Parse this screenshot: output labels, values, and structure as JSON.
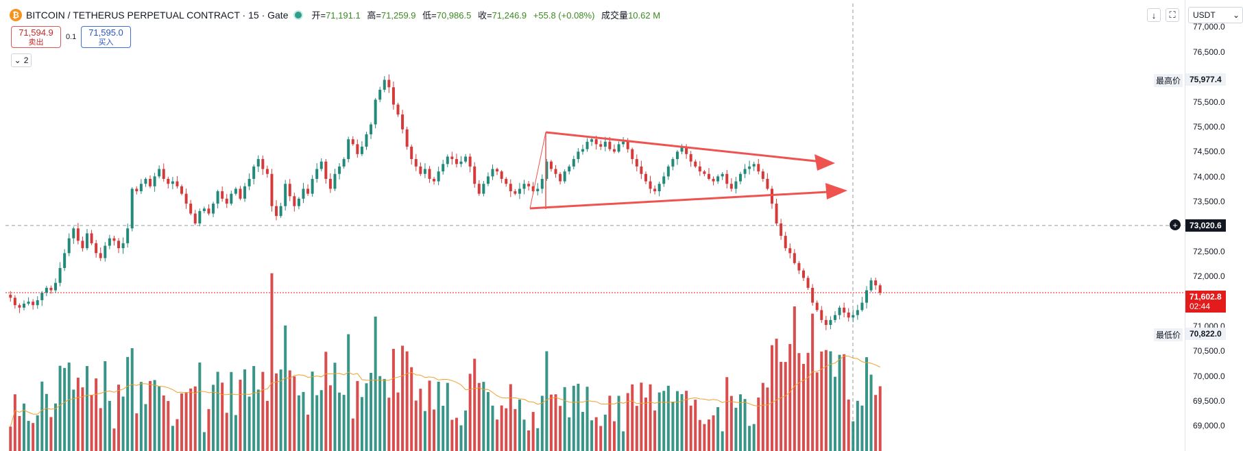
{
  "legend": {
    "coin_glyph": "₿",
    "symbol": "BITCOIN / TETHERUS PERPETUAL CONTRACT · 15 · Gate",
    "open_label": "开=",
    "open": "71,191.1",
    "high_label": "高=",
    "high": "71,259.9",
    "low_label": "低=",
    "low": "70,986.5",
    "close_label": "收=",
    "close": "71,246.9",
    "change": "+55.8 (+0.08%)",
    "volume_label": "成交量",
    "volume": "10.62 M"
  },
  "trade": {
    "sell_price": "71,594.9",
    "sell_label": "卖出",
    "spread": "0.1",
    "buy_price": "71,595.0",
    "buy_label": "买入"
  },
  "indicator_count": "2",
  "toolbar": {
    "download_icon": "↓",
    "fullscreen_icon": "⛶"
  },
  "currency_select": "USDT",
  "price_axis": {
    "ticks": [
      "77,000.0",
      "76,500.0",
      "75,500.0",
      "75,000.0",
      "74,500.0",
      "74,000.0",
      "73,500.0",
      "72,500.0",
      "72,000.0",
      "71,000.0",
      "70,500.0",
      "70,000.0",
      "69,500.0",
      "69,000.0"
    ],
    "high_label": "最高价",
    "high_value": "75,977.4",
    "low_label": "最低价",
    "low_value": "70,822.0",
    "crosshair_value": "73,020.6",
    "last_price": "71,602.8",
    "countdown": "02:44"
  },
  "colors": {
    "up": "#22897b",
    "down": "#d43a3a",
    "arrow": "#ef5350",
    "ma": "#f0a02a",
    "last_price_bg": "#e31b1b"
  },
  "chart_data": {
    "type": "candlestick",
    "interval": "15",
    "y_range": [
      68800,
      77100
    ],
    "candles": [
      71500,
      71350,
      71300,
      71380,
      71420,
      71350,
      71450,
      71600,
      71700,
      71650,
      71800,
      72100,
      72400,
      72700,
      72900,
      72650,
      72500,
      72800,
      72600,
      72400,
      72300,
      72550,
      72700,
      72650,
      72500,
      72600,
      72900,
      73700,
      73650,
      73800,
      73900,
      73750,
      73950,
      74100,
      73900,
      73800,
      73850,
      73750,
      73600,
      73400,
      73200,
      73000,
      73250,
      73300,
      73200,
      73400,
      73650,
      73500,
      73400,
      73600,
      73700,
      73500,
      73750,
      73900,
      74150,
      74300,
      74100,
      74000,
      73350,
      73150,
      73350,
      73800,
      73550,
      73350,
      73500,
      73700,
      73600,
      73900,
      74100,
      74250,
      73900,
      73700,
      74000,
      74150,
      74300,
      74700,
      74600,
      74400,
      74550,
      74800,
      75000,
      75500,
      75700,
      75900,
      75750,
      75400,
      75200,
      74900,
      74550,
      74300,
      74150,
      74000,
      74100,
      73900,
      73850,
      74050,
      74200,
      74350,
      74300,
      74200,
      74250,
      74350,
      74150,
      73800,
      73600,
      73800,
      73950,
      74100,
      74050,
      73900,
      73800,
      73650,
      73600,
      73700,
      73800,
      73750,
      73650,
      73700,
      73900,
      74250,
      74100,
      74000,
      73850,
      74050,
      74150,
      74300,
      74450,
      74500,
      74650,
      74700,
      74600,
      74550,
      74650,
      74500,
      74450,
      74600,
      74650,
      74500,
      74300,
      74150,
      74000,
      73850,
      73700,
      73650,
      73800,
      73950,
      74150,
      74300,
      74450,
      74550,
      74400,
      74250,
      74150,
      74050,
      74000,
      73900,
      73850,
      73950,
      74000,
      73800,
      73700,
      73850,
      74000,
      74100,
      74150,
      74200,
      74050,
      73900,
      73700,
      73400,
      73000,
      72750,
      72500,
      72400,
      72200,
      72050,
      71900,
      71700,
      71400,
      71250,
      71050,
      70950,
      71050,
      71150,
      71300,
      71200,
      71100,
      71150,
      71250,
      71400,
      71650,
      71850,
      71750,
      71600
    ]
  }
}
